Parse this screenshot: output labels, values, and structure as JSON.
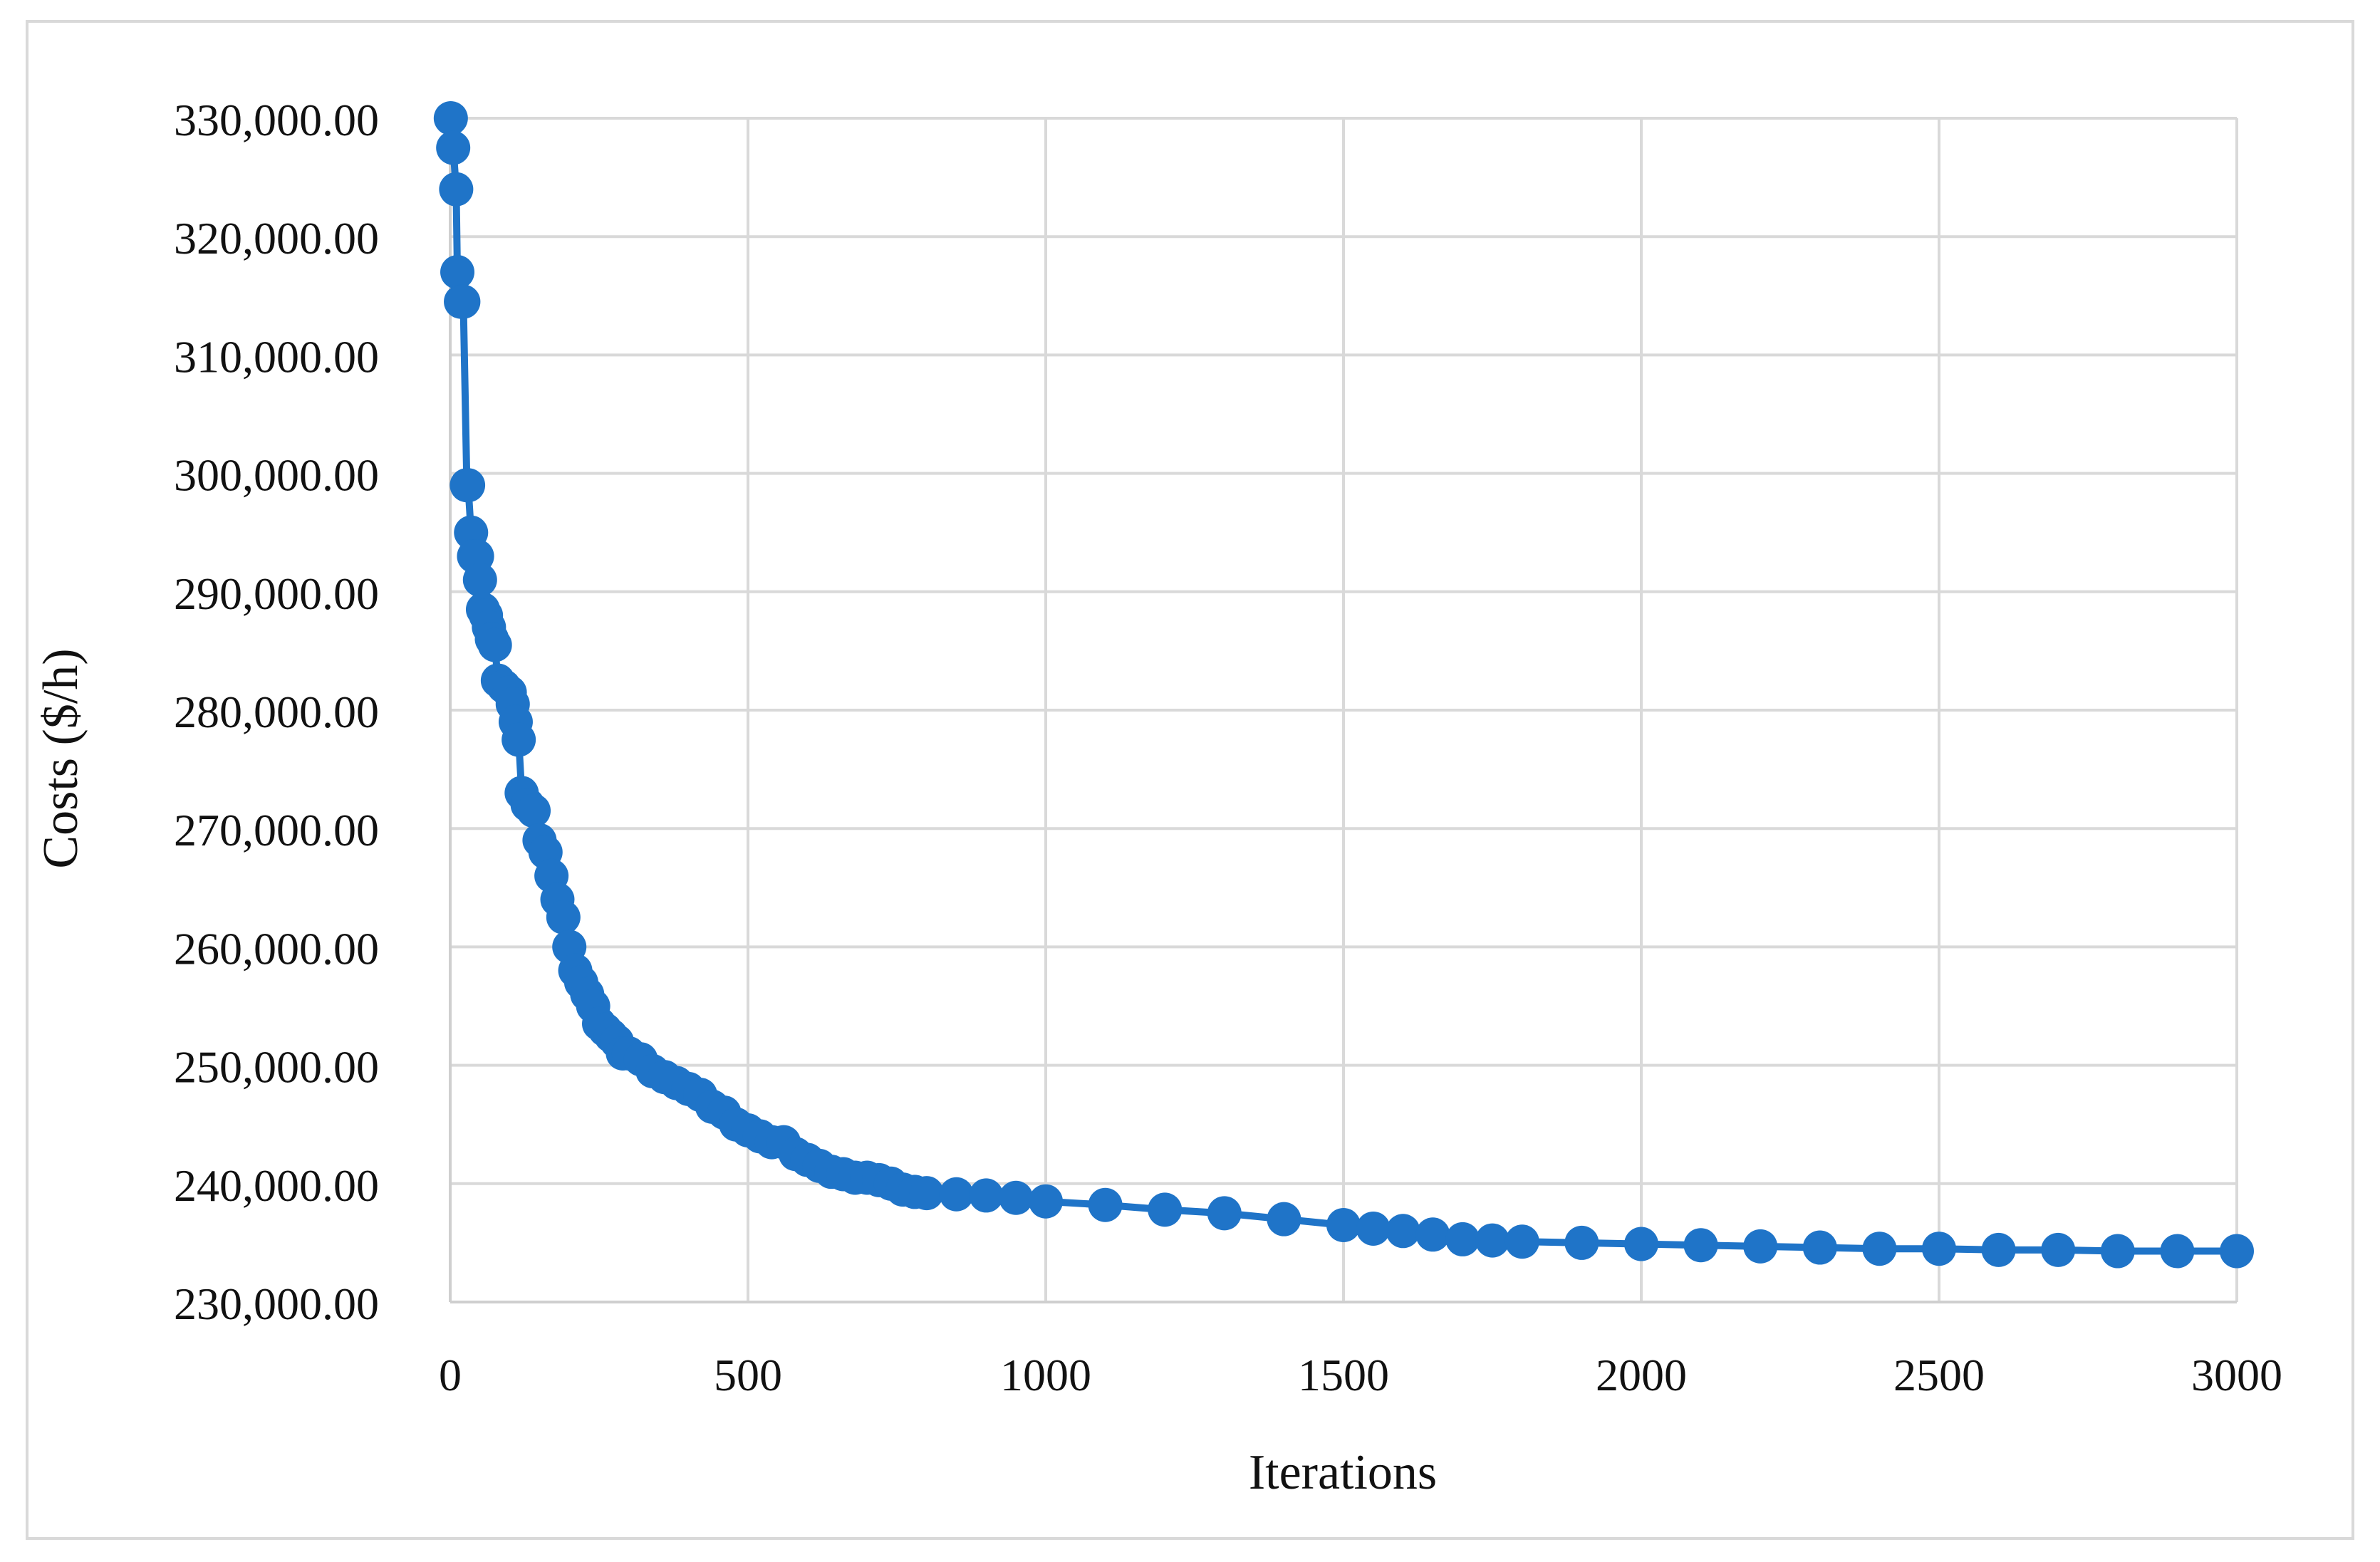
{
  "chart_data": {
    "type": "line",
    "title": "",
    "xlabel": "Iterations",
    "ylabel": "Costs ($/h)",
    "xlim": [
      0,
      3000
    ],
    "ylim": [
      230000,
      330000
    ],
    "x_ticks": [
      0,
      500,
      1000,
      1500,
      2000,
      2500,
      3000
    ],
    "x_tick_labels": [
      "0",
      "500",
      "1000",
      "1500",
      "2000",
      "2500",
      "3000"
    ],
    "y_ticks": [
      230000,
      240000,
      250000,
      260000,
      270000,
      280000,
      290000,
      300000,
      310000,
      320000,
      330000
    ],
    "y_tick_labels": [
      "230,000.00",
      "240,000.00",
      "250,000.00",
      "260,000.00",
      "270,000.00",
      "280,000.00",
      "290,000.00",
      "300,000.00",
      "310,000.00",
      "320,000.00",
      "330,000.00"
    ],
    "grid": true,
    "legend": "none",
    "series_color": "#1f74c8",
    "series": [
      {
        "x": [
          1,
          5,
          10,
          12,
          18,
          22,
          28,
          30,
          35,
          40,
          45,
          50,
          55,
          60,
          65,
          70,
          75,
          80,
          90,
          100,
          105,
          110,
          115,
          120,
          130,
          140,
          150,
          160,
          170,
          180,
          190,
          200,
          210,
          220,
          230,
          240,
          250,
          260,
          270,
          280,
          290,
          300,
          320,
          340,
          360,
          380,
          400,
          420,
          440,
          460,
          480,
          500,
          520,
          540,
          560,
          580,
          600,
          620,
          640,
          660,
          680,
          700,
          720,
          740,
          760,
          780,
          800,
          850,
          900,
          950,
          1000,
          1100,
          1200,
          1300,
          1400,
          1500,
          1550,
          1600,
          1650,
          1700,
          1750,
          1800,
          1900,
          2000,
          2100,
          2200,
          2300,
          2400,
          2500,
          2600,
          2700,
          2800,
          2900,
          3000
        ],
        "y": [
          330000,
          327500,
          324000,
          317000,
          314500,
          314500,
          299000,
          299000,
          295000,
          293000,
          293000,
          291000,
          288500,
          288000,
          287000,
          286000,
          285500,
          282500,
          282000,
          281500,
          280500,
          279000,
          277500,
          273000,
          272000,
          271500,
          269000,
          268000,
          266000,
          264000,
          262500,
          260000,
          258000,
          257000,
          256000,
          255000,
          253500,
          253000,
          252500,
          252000,
          251000,
          251000,
          250500,
          249500,
          249000,
          248500,
          248000,
          247500,
          246500,
          246000,
          245000,
          244500,
          244000,
          243500,
          243500,
          242500,
          242000,
          241500,
          241000,
          240800,
          240500,
          240500,
          240300,
          240000,
          239500,
          239300,
          239200,
          239100,
          239000,
          238800,
          238500,
          238200,
          237800,
          237500,
          237000,
          236500,
          236200,
          236000,
          235700,
          235300,
          235200,
          235100,
          235000,
          234900,
          234800,
          234700,
          234600,
          234500,
          234500,
          234400,
          234400,
          234300,
          234300,
          234300
        ]
      }
    ]
  }
}
